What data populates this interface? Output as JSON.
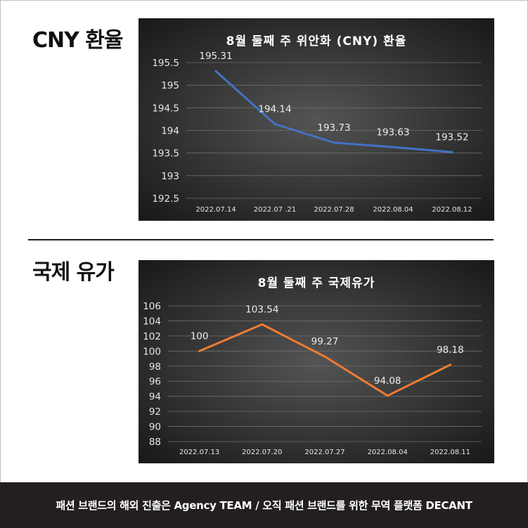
{
  "sections": [
    {
      "heading": "CNY 환율",
      "chart_data": {
        "type": "line",
        "title": "8월 둘째 주 위안화 (CNY) 환율",
        "categories": [
          "2022.07.14",
          "2022.07 .21",
          "2022.07.28",
          "2022.08.04",
          "2022.08.12"
        ],
        "values": [
          195.31,
          194.14,
          193.73,
          193.63,
          193.52
        ],
        "data_labels": [
          "195.31",
          "194.14",
          "193.73",
          "193.63",
          "193.52"
        ],
        "yticks": [
          "195.5",
          "195",
          "194.5",
          "194",
          "193.5",
          "193",
          "192.5"
        ],
        "ylim": [
          192.5,
          195.5
        ],
        "grid": true,
        "legend": "none",
        "line_color": "#4472c4"
      }
    },
    {
      "heading": "국제 유가",
      "chart_data": {
        "type": "line",
        "title": "8월 둘째 주 국제유가",
        "categories": [
          "2022.07.13",
          "2022.07.20",
          "2022.07.27",
          "2022.08.04",
          "2022.08.11"
        ],
        "values": [
          100,
          103.54,
          99.27,
          94.08,
          98.18
        ],
        "data_labels": [
          "100",
          "103.54",
          "99.27",
          "94.08",
          "98.18"
        ],
        "yticks": [
          "106",
          "104",
          "102",
          "100",
          "98",
          "96",
          "94",
          "92",
          "90",
          "88"
        ],
        "ylim": [
          88,
          106
        ],
        "grid": true,
        "legend": "none",
        "line_color": "#ed7d31"
      }
    }
  ],
  "footer": {
    "text": "패션 브랜드의 해외 진출은 Agency TEAM  / 오직 패션 브랜드를 위한 무역 플랫폼 DECANT"
  },
  "colors": {
    "panel_bg_center": "#545454",
    "panel_bg_edge": "#141414",
    "footer_bg": "#231f20"
  }
}
